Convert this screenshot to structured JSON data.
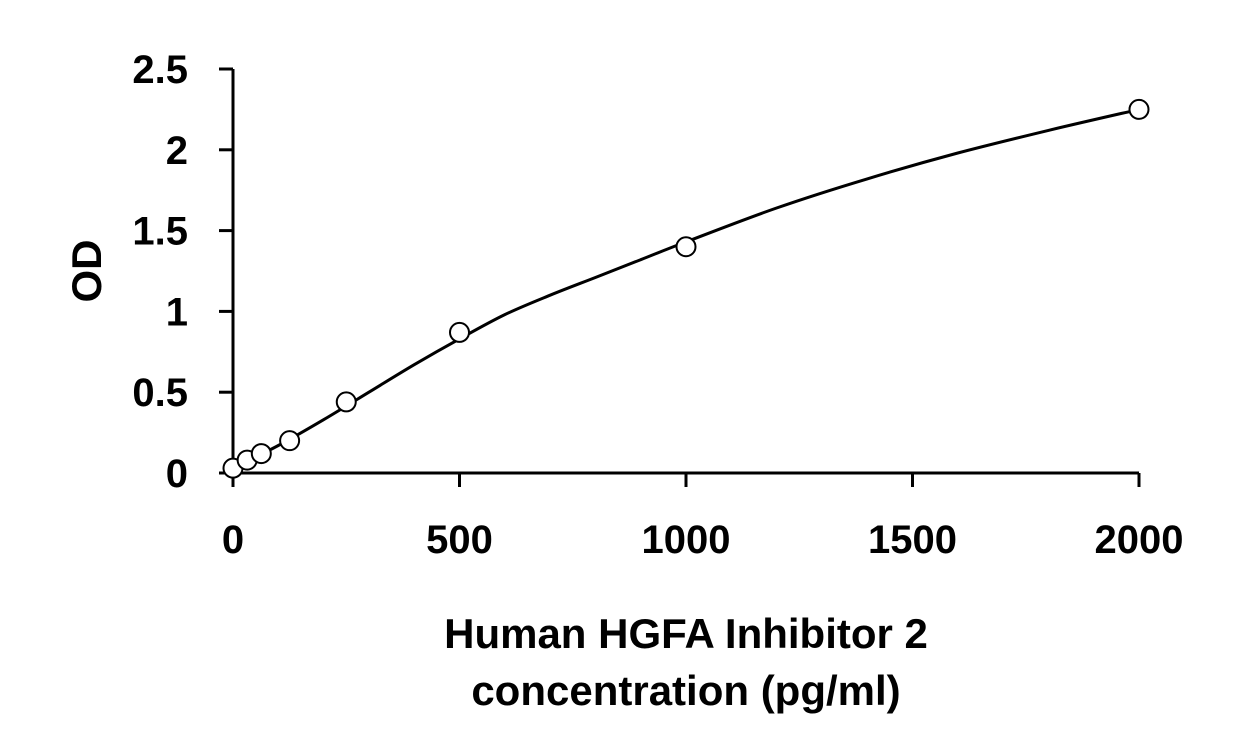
{
  "chart_data": {
    "type": "scatter",
    "xlabel_lines": [
      "Human HGFA Inhibitor 2",
      "concentration (pg/ml)"
    ],
    "ylabel": "OD",
    "xlim": [
      0,
      2000
    ],
    "ylim": [
      0,
      2.5
    ],
    "x_ticks": [
      0,
      500,
      1000,
      1500,
      2000
    ],
    "x_tick_labels": [
      "0",
      "500",
      "1000",
      "1500",
      "2000"
    ],
    "y_ticks": [
      0,
      0.5,
      1,
      1.5,
      2,
      2.5
    ],
    "y_tick_labels": [
      "0",
      "0.5",
      "1",
      "1.5",
      "2",
      "2.5"
    ],
    "grid": false,
    "legend": "none",
    "marker": "open-circle",
    "series": [
      {
        "x": [
          0,
          31.25,
          62.5,
          125,
          250,
          500,
          1000,
          2000
        ],
        "y": [
          0.03,
          0.08,
          0.12,
          0.2,
          0.44,
          0.87,
          1.4,
          2.25
        ],
        "fit": "smooth-curve"
      }
    ],
    "curve_points": [
      {
        "x": 0,
        "y": 0.03
      },
      {
        "x": 100,
        "y": 0.17
      },
      {
        "x": 200,
        "y": 0.33
      },
      {
        "x": 300,
        "y": 0.5
      },
      {
        "x": 400,
        "y": 0.67
      },
      {
        "x": 500,
        "y": 0.83
      },
      {
        "x": 600,
        "y": 0.98
      },
      {
        "x": 700,
        "y": 1.1
      },
      {
        "x": 800,
        "y": 1.21
      },
      {
        "x": 900,
        "y": 1.32
      },
      {
        "x": 1000,
        "y": 1.43
      },
      {
        "x": 1200,
        "y": 1.64
      },
      {
        "x": 1400,
        "y": 1.82
      },
      {
        "x": 1600,
        "y": 1.98
      },
      {
        "x": 1800,
        "y": 2.12
      },
      {
        "x": 2000,
        "y": 2.25
      }
    ],
    "colors": {
      "axis": "#000000",
      "curve": "#000000",
      "marker_stroke": "#000000",
      "marker_fill": "#ffffff"
    }
  }
}
